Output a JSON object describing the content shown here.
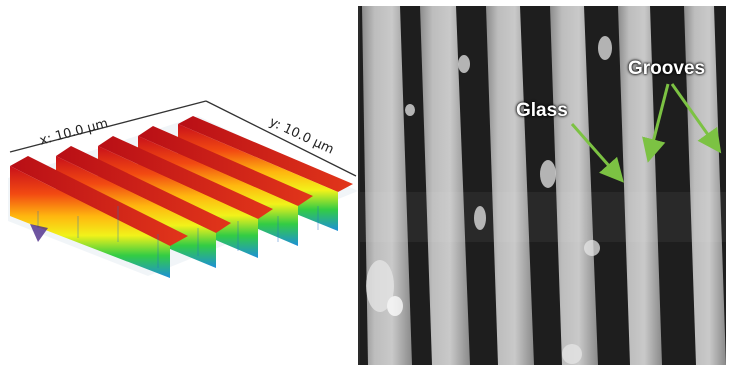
{
  "left_panel": {
    "x_axis_label": "x: 10.0 µm",
    "y_axis_label": "y: 10.0 µm"
  },
  "right_panel": {
    "glass_label": "Glass",
    "grooves_label": "Grooves",
    "arrow_color": "#7cc243"
  }
}
